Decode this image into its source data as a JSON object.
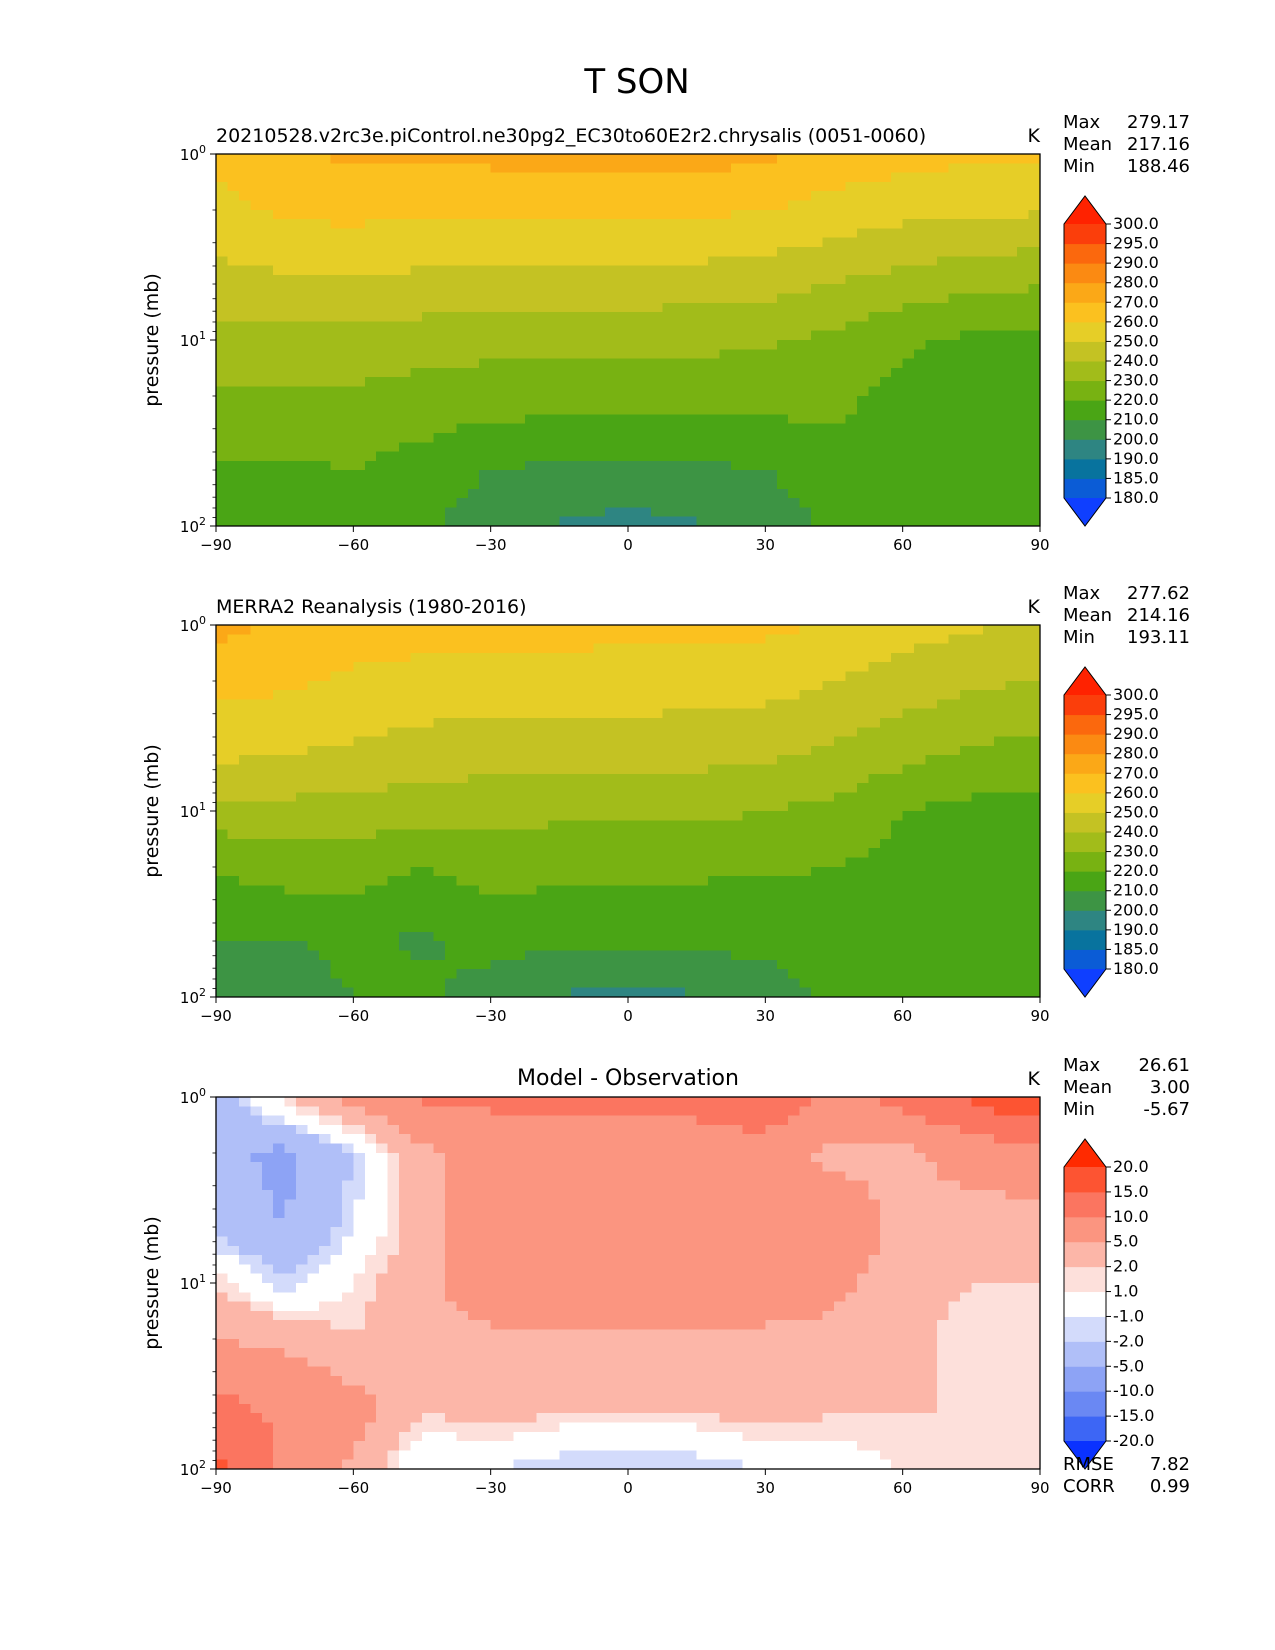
{
  "figure_title": "T SON",
  "chart_data": [
    {
      "type": "contourf",
      "panel": "test",
      "title": "20210528.v2rc3e.piControl.ne30pg2_EC30to60E2r2.chrysalis (0051-0060)",
      "units": "K",
      "stats": [
        {
          "label": "Max",
          "value": "279.17"
        },
        {
          "label": "Mean",
          "value": "217.16"
        },
        {
          "label": "Min",
          "value": "188.46"
        }
      ],
      "xlabel": "",
      "ylabel": "pressure (mb)",
      "xlim": [
        -90,
        90
      ],
      "ylim": [
        100,
        1
      ],
      "yscale": "log",
      "xticks": [
        "−90",
        "−60",
        "−30",
        "0",
        "30",
        "60",
        "90"
      ],
      "yticks": [
        {
          "base": "10",
          "exp": "0"
        },
        {
          "base": "10",
          "exp": "1"
        },
        {
          "base": "10",
          "exp": "2"
        }
      ],
      "levels": [
        180.0,
        185.0,
        190.0,
        200.0,
        210.0,
        220.0,
        230.0,
        240.0,
        250.0,
        260.0,
        270.0,
        280.0,
        290.0,
        295.0,
        300.0
      ],
      "level_labels": [
        "180.0",
        "185.0",
        "190.0",
        "200.0",
        "210.0",
        "220.0",
        "230.0",
        "240.0",
        "250.0",
        "260.0",
        "270.0",
        "280.0",
        "290.0",
        "295.0",
        "300.0"
      ],
      "colors": [
        "#0f3fff",
        "#0b5cd6",
        "#08739e",
        "#2e8582",
        "#3d9444",
        "#4aa515",
        "#78b212",
        "#a2bc1a",
        "#c4c223",
        "#e6ce27",
        "#fbc11f",
        "#fba817",
        "#fb8a12",
        "#fb680d",
        "#fb3e0b",
        "#ff2200"
      ],
      "lat": [
        -90,
        -75,
        -60,
        -45,
        -30,
        -15,
        0,
        15,
        30,
        45,
        60,
        75,
        90
      ],
      "pressure": [
        1,
        2,
        5,
        10,
        20,
        50,
        100
      ],
      "z": [
        [
          262,
          268,
          272,
          271,
          273,
          274,
          274,
          274,
          272,
          267,
          264,
          262,
          261
        ],
        [
          257,
          262,
          263,
          261,
          261,
          262,
          262,
          262,
          260,
          256,
          253,
          252,
          251
        ],
        [
          246,
          248,
          249,
          247,
          246,
          246,
          246,
          245,
          244,
          240,
          236,
          232,
          231
        ],
        [
          237,
          237,
          237,
          235,
          233,
          233,
          233,
          232,
          231,
          228,
          222,
          218,
          217
        ],
        [
          229,
          229,
          228,
          226,
          225,
          225,
          225,
          225,
          224,
          223,
          216,
          214,
          214
        ],
        [
          218,
          218,
          220,
          216,
          210,
          208,
          207,
          208,
          210,
          216,
          217,
          216,
          215
        ],
        [
          214,
          212,
          213,
          212,
          204,
          199,
          197,
          199,
          204,
          212,
          216,
          215,
          214
        ]
      ]
    },
    {
      "type": "contourf",
      "panel": "reference",
      "title": "MERRA2 Reanalysis (1980-2016)",
      "units": "K",
      "stats": [
        {
          "label": "Max",
          "value": "277.62"
        },
        {
          "label": "Mean",
          "value": "214.16"
        },
        {
          "label": "Min",
          "value": "193.11"
        }
      ],
      "xlabel": "",
      "ylabel": "pressure (mb)",
      "xlim": [
        -90,
        90
      ],
      "ylim": [
        100,
        1
      ],
      "yscale": "log",
      "xticks": [
        "−90",
        "−60",
        "−30",
        "0",
        "30",
        "60",
        "90"
      ],
      "yticks": [
        {
          "base": "10",
          "exp": "0"
        },
        {
          "base": "10",
          "exp": "1"
        },
        {
          "base": "10",
          "exp": "2"
        }
      ],
      "levels": [
        180.0,
        185.0,
        190.0,
        200.0,
        210.0,
        220.0,
        230.0,
        240.0,
        250.0,
        260.0,
        270.0,
        280.0,
        290.0,
        295.0,
        300.0
      ],
      "level_labels": [
        "180.0",
        "185.0",
        "190.0",
        "200.0",
        "210.0",
        "220.0",
        "230.0",
        "240.0",
        "250.0",
        "260.0",
        "270.0",
        "280.0",
        "290.0",
        "295.0",
        "300.0"
      ],
      "colors": [
        "#0f3fff",
        "#0b5cd6",
        "#08739e",
        "#2e8582",
        "#3d9444",
        "#4aa515",
        "#78b212",
        "#a2bc1a",
        "#c4c223",
        "#e6ce27",
        "#fbc11f",
        "#fba817",
        "#fb8a12",
        "#fb680d",
        "#fb3e0b",
        "#ff2200"
      ],
      "lat": [
        -90,
        -75,
        -60,
        -45,
        -30,
        -15,
        0,
        15,
        30,
        45,
        60,
        75,
        90
      ],
      "pressure": [
        1,
        2,
        5,
        10,
        20,
        50,
        100
      ],
      "z": [
        [
          273,
          268,
          265,
          265,
          264,
          264,
          263,
          263,
          262,
          259,
          254,
          251,
          249
        ],
        [
          263,
          262,
          258,
          256,
          255,
          255,
          255,
          255,
          254,
          250,
          246,
          242,
          240
        ],
        [
          252,
          250,
          248,
          246,
          244,
          244,
          244,
          243,
          242,
          238,
          233,
          228,
          226
        ],
        [
          236,
          237,
          236,
          234,
          233,
          232,
          232,
          232,
          230,
          227,
          220,
          217,
          216
        ],
        [
          221,
          225,
          224,
          220,
          224,
          223,
          223,
          222,
          221,
          220,
          217,
          214,
          212
        ],
        [
          210,
          209,
          213,
          208,
          214,
          212,
          212,
          212,
          213,
          214,
          215,
          215,
          214
        ],
        [
          201,
          205,
          210,
          213,
          205,
          199,
          198,
          199,
          205,
          212,
          214,
          214,
          214
        ]
      ]
    },
    {
      "type": "contourf",
      "panel": "difference",
      "title": "Model - Observation",
      "units": "K",
      "stats": [
        {
          "label": "Max",
          "value": "26.61"
        },
        {
          "label": "Mean",
          "value": "3.00"
        },
        {
          "label": "Min",
          "value": "-5.67"
        }
      ],
      "metrics": [
        {
          "label": "RMSE",
          "value": "7.82"
        },
        {
          "label": "CORR",
          "value": "0.99"
        }
      ],
      "xlabel": "",
      "ylabel": "pressure (mb)",
      "xlim": [
        -90,
        90
      ],
      "ylim": [
        100,
        1
      ],
      "yscale": "log",
      "xticks": [
        "−90",
        "−60",
        "−30",
        "0",
        "30",
        "60",
        "90"
      ],
      "yticks": [
        {
          "base": "10",
          "exp": "0"
        },
        {
          "base": "10",
          "exp": "1"
        },
        {
          "base": "10",
          "exp": "2"
        }
      ],
      "levels": [
        -20.0,
        -15.0,
        -10.0,
        -5.0,
        -2.0,
        -1.0,
        1.0,
        2.0,
        5.0,
        10.0,
        15.0,
        20.0
      ],
      "level_labels": [
        "-20.0",
        "-15.0",
        "-10.0",
        "-5.0",
        "-2.0",
        "-1.0",
        "1.0",
        "2.0",
        "5.0",
        "10.0",
        "15.0",
        "20.0"
      ],
      "colors": [
        "#0a32ff",
        "#3d66f5",
        "#6a88f3",
        "#8da3f5",
        "#b0bff8",
        "#d3dbfb",
        "#ffffff",
        "#fde0db",
        "#fcb6a8",
        "#fb9580",
        "#fb7560",
        "#fd5432",
        "#ff2a00"
      ],
      "lat": [
        -90,
        -75,
        -60,
        -45,
        -30,
        -15,
        0,
        15,
        30,
        45,
        60,
        75,
        90
      ],
      "pressure": [
        1,
        2,
        5,
        10,
        20,
        50,
        100
      ],
      "z": [
        [
          -4,
          2,
          6,
          11,
          11,
          11,
          11,
          12,
          15,
          8,
          12,
          16,
          20
        ],
        [
          -4,
          -6,
          -2,
          4,
          7,
          7,
          7,
          7,
          7,
          4,
          4,
          7,
          8
        ],
        [
          -3,
          -5,
          -1,
          3,
          8,
          8,
          8,
          8,
          8,
          8,
          4,
          3,
          3
        ],
        [
          2,
          -2,
          1,
          4,
          8,
          8,
          8,
          8,
          8,
          6,
          3,
          2,
          2
        ],
        [
          5,
          4,
          2,
          4,
          4,
          4,
          4,
          4,
          4,
          4,
          3,
          1,
          1
        ],
        [
          12,
          9,
          7,
          2,
          3,
          2,
          2,
          2,
          3,
          2,
          2,
          2,
          1
        ],
        [
          16,
          9,
          4,
          -1,
          -1,
          -2,
          -2,
          -2,
          -1,
          0,
          1,
          2,
          2
        ]
      ]
    }
  ]
}
